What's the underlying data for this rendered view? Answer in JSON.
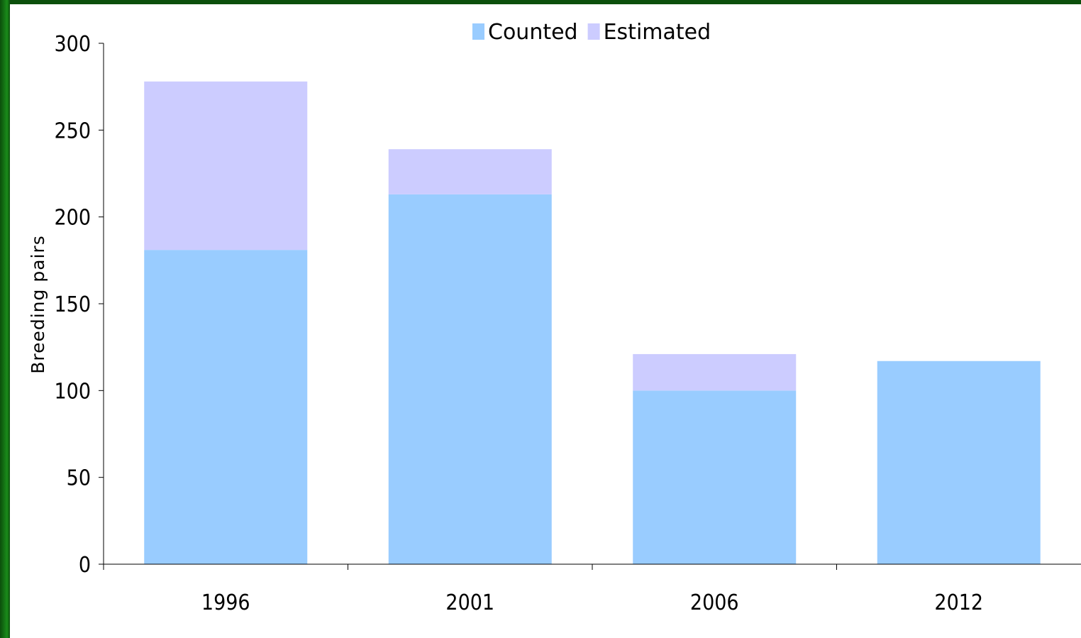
{
  "chart_data": {
    "type": "bar",
    "stacked": true,
    "categories": [
      "1996",
      "2001",
      "2006",
      "2012"
    ],
    "series": [
      {
        "name": "Counted",
        "values": [
          181,
          213,
          100,
          117
        ],
        "color": "#99ccff"
      },
      {
        "name": "Estimated",
        "values": [
          97,
          26,
          21,
          0
        ],
        "color": "#ccccff"
      }
    ],
    "title": "",
    "xlabel": "",
    "ylabel": "Breeding pairs",
    "ylim": [
      0,
      300
    ],
    "yticks": [
      "0",
      "50",
      "100",
      "150",
      "200",
      "250",
      "300"
    ],
    "legend_position": "top-center",
    "grid": false
  }
}
